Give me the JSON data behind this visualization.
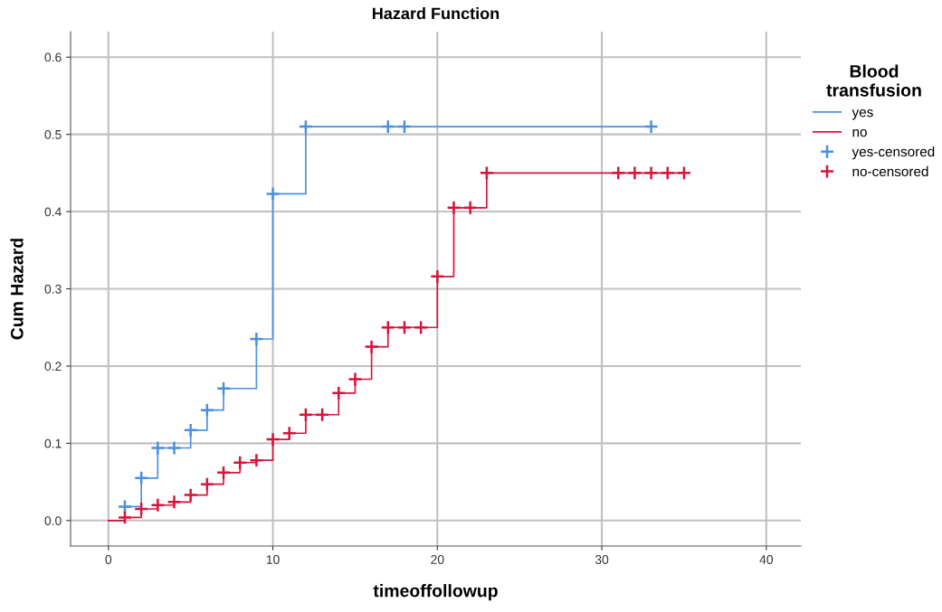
{
  "chart_data": {
    "type": "step",
    "title": "Hazard Function",
    "xlabel": "timeoffollowup",
    "ylabel": "Cum Hazard",
    "legend_title": "Blood transfusion",
    "xlim": [
      -2.3,
      42.1
    ],
    "ylim": [
      -0.033,
      0.633
    ],
    "xticks": [
      0,
      10,
      20,
      30,
      40
    ],
    "yticks": [
      {
        "value": 0,
        "label": "0.0"
      },
      0.1,
      0.2,
      0.3,
      0.4,
      0.5,
      0.6
    ],
    "grid": true,
    "legend": "right",
    "series": [
      {
        "name": "yes",
        "color": "#4a90e2",
        "x": [
          0,
          1,
          2,
          3,
          5,
          6,
          7,
          9,
          10,
          12,
          33
        ],
        "values": [
          0,
          0.018,
          0.055,
          0.094,
          0.117,
          0.143,
          0.171,
          0.235,
          0.423,
          0.51,
          0.51
        ]
      },
      {
        "name": "no",
        "color": "#d7143c",
        "x": [
          0,
          1,
          2,
          3,
          4,
          5,
          6,
          7,
          8,
          9,
          10,
          11,
          12,
          14,
          15,
          16,
          17,
          20,
          21,
          23,
          35
        ],
        "values": [
          0,
          0.004,
          0.015,
          0.02,
          0.024,
          0.033,
          0.047,
          0.062,
          0.075,
          0.078,
          0.105,
          0.113,
          0.137,
          0.165,
          0.183,
          0.225,
          0.25,
          0.316,
          0.405,
          0.45,
          0.45
        ]
      },
      {
        "name": "yes-censored",
        "type": "scatter",
        "marker": "cross",
        "color": "#4a90e2",
        "x": [
          1,
          2,
          3,
          4,
          5,
          6,
          7,
          9,
          10,
          12,
          17,
          18,
          33
        ],
        "values": [
          0.018,
          0.055,
          0.094,
          0.094,
          0.117,
          0.143,
          0.171,
          0.235,
          0.423,
          0.51,
          0.51,
          0.51,
          0.51
        ]
      },
      {
        "name": "no-censored",
        "type": "scatter",
        "marker": "cross",
        "color": "#d7143c",
        "x": [
          1,
          2,
          3,
          4,
          5,
          6,
          7,
          8,
          9,
          10,
          11,
          12,
          13,
          14,
          15,
          16,
          17,
          18,
          19,
          20,
          21,
          22,
          23,
          31,
          32,
          33,
          34,
          35
        ],
        "values": [
          0.004,
          0.015,
          0.02,
          0.024,
          0.033,
          0.047,
          0.062,
          0.075,
          0.078,
          0.105,
          0.113,
          0.137,
          0.137,
          0.165,
          0.183,
          0.225,
          0.25,
          0.25,
          0.25,
          0.316,
          0.405,
          0.405,
          0.45,
          0.45,
          0.45,
          0.45,
          0.45,
          0.45
        ]
      }
    ]
  }
}
